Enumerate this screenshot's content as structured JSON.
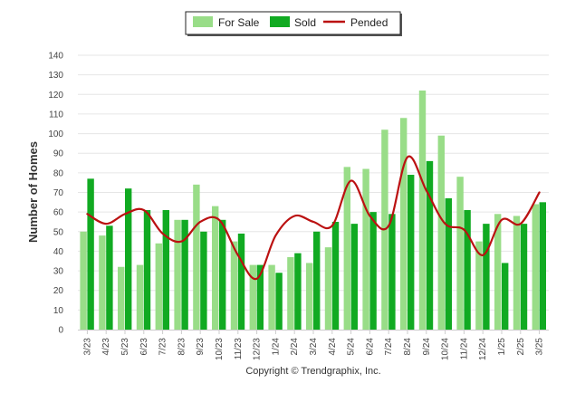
{
  "chart_data": {
    "type": "bar",
    "title": "",
    "xlabel": "",
    "ylabel": "Number of Homes",
    "ylim": [
      0,
      140
    ],
    "yticks": [
      0,
      10,
      20,
      30,
      40,
      50,
      60,
      70,
      80,
      90,
      100,
      110,
      120,
      130,
      140
    ],
    "grid": true,
    "legend_position": "top-center",
    "categories": [
      "3/23",
      "4/23",
      "5/23",
      "6/23",
      "7/23",
      "8/23",
      "9/23",
      "10/23",
      "11/23",
      "12/23",
      "1/24",
      "2/24",
      "3/24",
      "4/24",
      "5/24",
      "6/24",
      "7/24",
      "8/24",
      "9/24",
      "10/24",
      "11/24",
      "12/24",
      "1/25",
      "2/25",
      "3/25"
    ],
    "series": [
      {
        "name": "For Sale",
        "type": "bar",
        "color": "#99dd88",
        "values": [
          50,
          48,
          32,
          33,
          44,
          56,
          74,
          63,
          45,
          33,
          33,
          37,
          34,
          42,
          83,
          82,
          102,
          108,
          122,
          99,
          78,
          45,
          59,
          58,
          64
        ]
      },
      {
        "name": "Sold",
        "type": "bar",
        "color": "#11aa22",
        "values": [
          77,
          53,
          72,
          61,
          61,
          56,
          50,
          56,
          49,
          33,
          29,
          39,
          50,
          55,
          54,
          60,
          59,
          79,
          86,
          67,
          61,
          54,
          34,
          54,
          65
        ]
      },
      {
        "name": "Pended",
        "type": "line",
        "color": "#bb1111",
        "values": [
          59,
          54,
          59,
          61,
          49,
          45,
          55,
          56,
          38,
          26,
          48,
          58,
          55,
          53,
          76,
          58,
          53,
          88,
          71,
          54,
          51,
          38,
          56,
          54,
          70
        ]
      }
    ]
  },
  "credit": "Copyright © Trendgraphix, Inc."
}
